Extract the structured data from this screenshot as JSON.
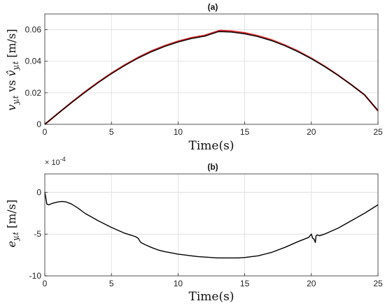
{
  "chart_data": [
    {
      "type": "line",
      "title": "(a)",
      "xlabel": "Time(s)",
      "ylabel": "v_{y,t} vs ŷ_{y,t} [m/s]",
      "ylabel_parts": {
        "a": "v",
        "a_sub": "y,t",
        "vs": " vs ",
        "b": "v̂",
        "b_sub": "y,t",
        "unit": " [m/s]"
      },
      "xlim": [
        0,
        25
      ],
      "ylim": [
        0,
        0.07
      ],
      "x_ticks": [
        0,
        5,
        10,
        15,
        20,
        25
      ],
      "x_tick_labels": [
        "0",
        "5",
        "10",
        "15",
        "20",
        "25"
      ],
      "y_ticks": [
        0,
        0.02,
        0.04,
        0.06
      ],
      "y_tick_labels": [
        "0",
        "0.02",
        "0.04",
        "0.06"
      ],
      "grid": true,
      "series": [
        {
          "color": "#d62728",
          "x": [
            0,
            1,
            2,
            3,
            4,
            5,
            6,
            7,
            8,
            9,
            10,
            11,
            12,
            13,
            13.2,
            14,
            15,
            16,
            17,
            18,
            19,
            20,
            21,
            22,
            23,
            24,
            25
          ],
          "y": [
            0,
            0.007,
            0.0139,
            0.0205,
            0.0267,
            0.0325,
            0.0377,
            0.0424,
            0.0465,
            0.0499,
            0.0527,
            0.0549,
            0.0564,
            0.0592,
            0.0595,
            0.0591,
            0.058,
            0.0561,
            0.0536,
            0.0503,
            0.0464,
            0.0419,
            0.0368,
            0.0312,
            0.0251,
            0.0186,
            0.0085
          ]
        },
        {
          "color": "#000000",
          "x": [
            0,
            1,
            2,
            3,
            4,
            5,
            6,
            7,
            8,
            9,
            10,
            11,
            12,
            13,
            13.2,
            14,
            15,
            16,
            17,
            18,
            19,
            20,
            21,
            22,
            23,
            24,
            25
          ],
          "y": [
            0,
            0.0069,
            0.0137,
            0.0202,
            0.0264,
            0.0321,
            0.0373,
            0.042,
            0.046,
            0.0494,
            0.0522,
            0.0544,
            0.0559,
            0.0587,
            0.0588,
            0.0585,
            0.0574,
            0.0556,
            0.0531,
            0.0499,
            0.046,
            0.0416,
            0.0366,
            0.0311,
            0.0251,
            0.0187,
            0.0088
          ]
        }
      ]
    },
    {
      "type": "line",
      "title": "(b)",
      "xlabel": "Time(s)",
      "ylabel": "e_{y,t} [m/s]",
      "ylabel_parts": {
        "a": "e",
        "a_sub": "y,t",
        "unit": " [m/s]"
      },
      "exponent_label": "× 10",
      "exponent_power": "-4",
      "xlim": [
        0,
        25
      ],
      "ylim": [
        -10,
        2.2
      ],
      "x_ticks": [
        0,
        5,
        10,
        15,
        20,
        25
      ],
      "x_tick_labels": [
        "0",
        "5",
        "10",
        "15",
        "20",
        "25"
      ],
      "y_ticks": [
        -10,
        -5,
        0
      ],
      "y_tick_labels": [
        "-10",
        "-5",
        "0"
      ],
      "grid": true,
      "series": [
        {
          "color": "#000000",
          "x": [
            0,
            0.05,
            0.15,
            0.3,
            0.6,
            1.0,
            1.3,
            1.6,
            2.0,
            2.5,
            3,
            4,
            5,
            6,
            6.8,
            7.0,
            7.2,
            7.5,
            8,
            8.5,
            9,
            9.5,
            10,
            10.5,
            11,
            11.5,
            12,
            12.5,
            13,
            13.5,
            14,
            14.5,
            15,
            16,
            17,
            18,
            19,
            19.8,
            20.0,
            20.1,
            20.2,
            20.3,
            20.35,
            20.45,
            20.6,
            21,
            22,
            23,
            24,
            25
          ],
          "y": [
            0,
            -0.4,
            -1.4,
            -1.5,
            -1.3,
            -1.15,
            -1.1,
            -1.15,
            -1.4,
            -1.9,
            -2.5,
            -3.4,
            -4.2,
            -4.9,
            -5.3,
            -5.5,
            -6.0,
            -6.25,
            -6.6,
            -6.9,
            -7.1,
            -7.25,
            -7.4,
            -7.5,
            -7.6,
            -7.7,
            -7.75,
            -7.8,
            -7.85,
            -7.85,
            -7.85,
            -7.85,
            -7.8,
            -7.6,
            -7.2,
            -6.6,
            -5.9,
            -5.4,
            -5.0,
            -5.5,
            -5.6,
            -6.0,
            -5.2,
            -5.1,
            -5.2,
            -5.0,
            -4.3,
            -3.4,
            -2.5,
            -1.5
          ]
        }
      ]
    }
  ]
}
